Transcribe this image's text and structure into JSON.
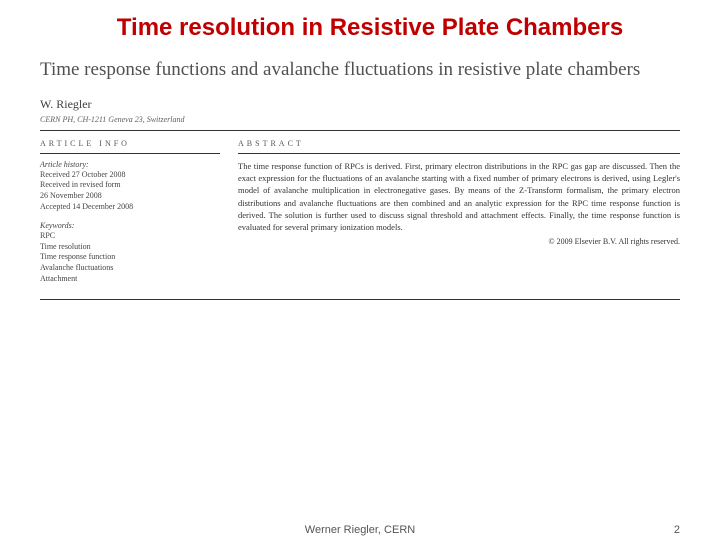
{
  "slide": {
    "title": "Time resolution in Resistive Plate Chambers",
    "footer_center": "Werner Riegler, CERN",
    "page_num": "2"
  },
  "paper": {
    "title": "Time response functions and avalanche fluctuations in resistive plate chambers",
    "author": "W. Riegler",
    "affiliation": "CERN PH, CH-1211 Geneva 23, Switzerland",
    "info_hdr": "ARTICLE INFO",
    "abstract_hdr": "ABSTRACT",
    "history_label": "Article history:",
    "history": [
      "Received 27 October 2008",
      "Received in revised form",
      "26 November 2008",
      "Accepted 14 December 2008"
    ],
    "kw_label": "Keywords:",
    "keywords": [
      "RPC",
      "Time resolution",
      "Time response function",
      "Avalanche fluctuations",
      "Attachment"
    ],
    "abstract": "The time response function of RPCs is derived. First, primary electron distributions in the RPC gas gap are discussed. Then the exact expression for the fluctuations of an avalanche starting with a fixed number of primary electrons is derived, using Legler's model of avalanche multiplication in electronegative gases. By means of the Z-Transform formalism, the primary electron distributions and avalanche fluctuations are then combined and an analytic expression for the RPC time response function is derived. The solution is further used to discuss signal threshold and attachment effects. Finally, the time response function is evaluated for several primary ionization models.",
    "copyright": "© 2009 Elsevier B.V. All rights reserved."
  },
  "colors": {
    "title_color": "#c00000",
    "text_color": "#333333",
    "rule_color": "#333333",
    "bg": "#ffffff"
  }
}
